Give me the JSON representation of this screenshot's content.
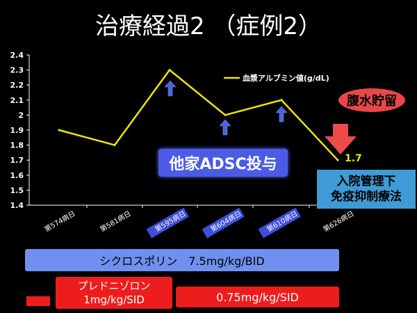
{
  "slide": {
    "title": "治療経過2 （症例2）"
  },
  "chart_data": {
    "type": "line",
    "categories": [
      "第574病日",
      "第581病日",
      "第595病日",
      "第604病日",
      "第610病日",
      "第626病日"
    ],
    "highlighted_categories": [
      "第595病日",
      "第604病日",
      "第610病日"
    ],
    "series": [
      {
        "name": "血漿アルブミン値(g/dL)",
        "values": [
          1.9,
          1.8,
          2.3,
          2.0,
          2.1,
          1.7
        ],
        "color": "#f2e600"
      }
    ],
    "ylim": [
      1.4,
      2.4
    ],
    "yticks": [
      "1.4",
      "1.5",
      "1.6",
      "1.7",
      "1.8",
      "1.9",
      "2",
      "2.1",
      "2.2",
      "2.3",
      "2.4"
    ],
    "end_label": "1.7",
    "dose_arrow_categories": [
      "第595病日",
      "第604病日",
      "第610病日"
    ],
    "legend_position": "top-right",
    "grid": false
  },
  "callouts": {
    "adsc": "他家ADSC投与",
    "hospital_line1": "入院管理下",
    "hospital_line2": "免疫抑制療法",
    "ascites": "腹水貯留"
  },
  "treatments": {
    "cyclosporine": "シクロスポリン　7.5mg/kg/BID",
    "prednisolone_line1": "プレドニゾロン",
    "prednisolone_line2": "1mg/kg/SID",
    "prednisolone_dose2": "0.75mg/kg/SID"
  },
  "colors": {
    "background": "#000000",
    "line": "#f2e600",
    "dose_arrow": "#4a63e0",
    "cyclosporine_bar": "#7090ef",
    "prednisolone_bar": "#ee1d1d",
    "ascites_arrow": "#ee4a4a"
  }
}
